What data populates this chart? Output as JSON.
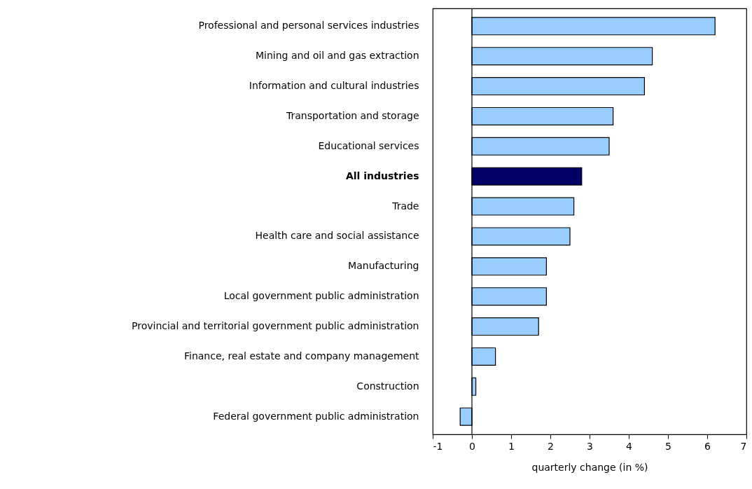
{
  "chart_data": {
    "type": "bar",
    "orientation": "horizontal",
    "xlabel": "quarterly change (in %)",
    "categories": [
      "Professional and personal services industries",
      "Mining and oil and gas extraction",
      "Information and cultural industries",
      "Transportation and storage",
      "Educational services",
      "All industries",
      "Trade",
      "Health care and social assistance",
      "Manufacturing",
      "Local government public administration",
      "Provincial and territorial government public administration",
      "Finance, real estate and company management",
      "Construction",
      "Federal government public administration"
    ],
    "values": [
      6.2,
      4.6,
      4.4,
      3.6,
      3.5,
      2.8,
      2.6,
      2.5,
      1.9,
      1.9,
      1.7,
      0.6,
      0.1,
      -0.3
    ],
    "colors": [
      "#99ccff",
      "#99ccff",
      "#99ccff",
      "#99ccff",
      "#99ccff",
      "#000066",
      "#99ccff",
      "#99ccff",
      "#99ccff",
      "#99ccff",
      "#99ccff",
      "#99ccff",
      "#99ccff",
      "#99ccff"
    ],
    "xlim": [
      -1,
      7
    ],
    "xticks": [
      -1,
      0,
      1,
      2,
      3,
      4,
      5,
      6,
      7
    ],
    "ref_lines": [
      {
        "axis": "x",
        "value": 0
      }
    ],
    "grid": false
  }
}
